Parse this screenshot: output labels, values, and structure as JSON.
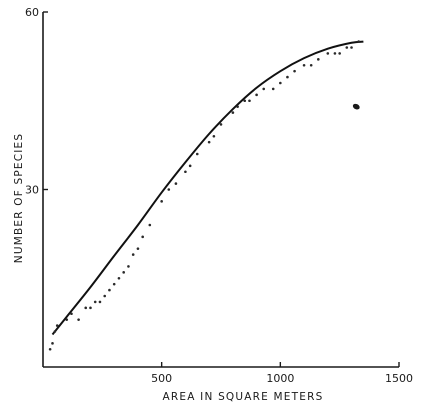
{
  "chart_data": {
    "type": "scatter",
    "title": "",
    "xlabel": "AREA IN SQUARE METERS",
    "ylabel": "NUMBER OF SPECIES",
    "xlim": [
      0,
      1500
    ],
    "ylim": [
      0,
      60
    ],
    "x_ticks": [
      500,
      1000,
      1500
    ],
    "x_tick_labels": [
      "500",
      "1000",
      "1500"
    ],
    "y_ticks": [
      30,
      60
    ],
    "y_tick_labels": [
      "30",
      "60"
    ],
    "grid": false,
    "legend": "none",
    "series": [
      {
        "kind": "points",
        "x": [
          30,
          40,
          50,
          60,
          100,
          120,
          150,
          180,
          200,
          220,
          240,
          260,
          280,
          300,
          320,
          340,
          360,
          380,
          400,
          420,
          450,
          500,
          530,
          560,
          600,
          620,
          650,
          700,
          720,
          750,
          800,
          820,
          850,
          870,
          900,
          930,
          970,
          1000,
          1030,
          1060,
          1100,
          1130,
          1160,
          1200,
          1230,
          1250,
          1280,
          1300,
          1330
        ],
        "y": [
          3,
          4,
          6,
          7,
          8,
          9,
          8,
          10,
          10,
          11,
          11,
          12,
          13,
          14,
          15,
          16,
          17,
          19,
          20,
          22,
          24,
          28,
          30,
          31,
          33,
          34,
          36,
          38,
          39,
          41,
          43,
          44,
          45,
          45,
          46,
          47,
          47,
          48,
          49,
          50,
          51,
          51,
          52,
          53,
          53,
          53,
          54,
          54,
          55
        ]
      },
      {
        "kind": "line",
        "x": [
          40,
          100,
          200,
          300,
          400,
          500,
          600,
          700,
          800,
          900,
          1000,
          1100,
          1200,
          1300,
          1350
        ],
        "y": [
          5.5,
          8.5,
          13.5,
          18.8,
          24,
          29.5,
          34.6,
          39.4,
          43.6,
          47.2,
          50,
          52.2,
          53.8,
          54.8,
          55
        ]
      }
    ],
    "annotations": [
      {
        "kind": "blot",
        "x": 1320,
        "y": 44
      }
    ]
  }
}
